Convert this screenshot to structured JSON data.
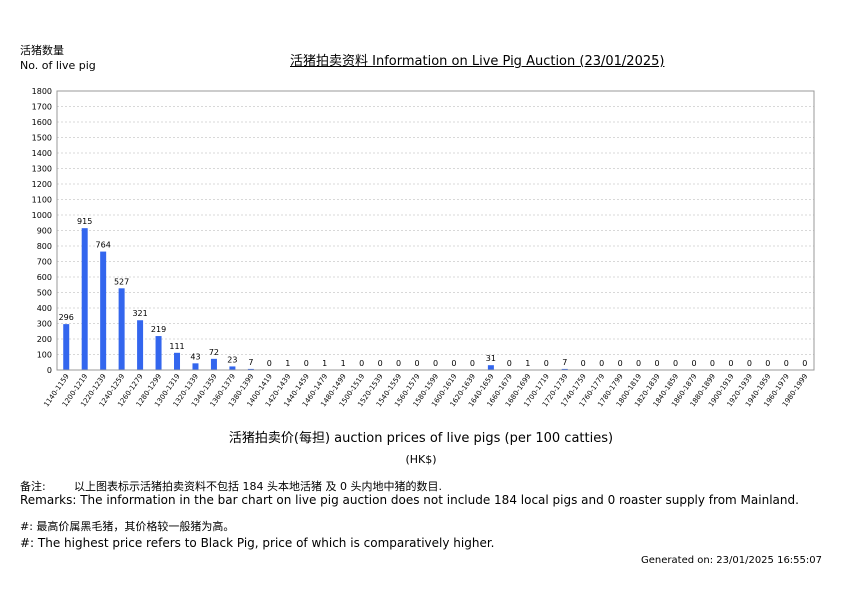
{
  "header": {
    "ylabel_cn": "活猪数量",
    "ylabel_en": "No. of live pig",
    "title": "活猪拍卖资料 Information on Live Pig Auction (23/01/2025)"
  },
  "footer": {
    "xlabel": "活猪拍卖价(每担) auction prices of live pigs (per 100 catties)",
    "unit": "(HK$)",
    "remark_cn_label": "备注:",
    "remark_cn": "以上图表标示活猪拍卖资料不包括 184 头本地活猪 及 0 头内地中猪的数目.",
    "remark_en": "Remarks: The information in the bar chart on live pig auction does not include 184 local pigs and 0 roaster supply from Mainland.",
    "note_cn": "#: 最高价属黑毛猪，其价格较一般猪为高。",
    "note_en": "#: The highest price refers to Black Pig, price of which is comparatively higher.",
    "generated": "Generated on: 23/01/2025 16:55:07"
  },
  "chart_data": {
    "type": "bar",
    "title": "活猪拍卖资料 Information on Live Pig Auction (23/01/2025)",
    "xlabel": "活猪拍卖价(每担) auction prices of live pigs (per 100 catties)",
    "ylabel": "活猪数量 No. of live pig",
    "ylim": [
      0,
      1800
    ],
    "yticks": [
      0,
      100,
      200,
      300,
      400,
      500,
      600,
      700,
      800,
      900,
      1000,
      1100,
      1200,
      1300,
      1400,
      1500,
      1600,
      1700,
      1800
    ],
    "grid": true,
    "bar_color": "#3366ee",
    "categories": [
      "1140-1159",
      "1200-1219",
      "1220-1239",
      "1240-1259",
      "1260-1279",
      "1280-1299",
      "1300-1319",
      "1320-1339",
      "1340-1359",
      "1360-1379",
      "1380-1399",
      "1400-1419",
      "1420-1439",
      "1440-1459",
      "1460-1479",
      "1480-1499",
      "1500-1519",
      "1520-1539",
      "1540-1559",
      "1560-1579",
      "1580-1599",
      "1600-1619",
      "1620-1639",
      "1640-1659",
      "1660-1679",
      "1680-1699",
      "1700-1719",
      "1720-1739",
      "1740-1759",
      "1760-1779",
      "1780-1799",
      "1800-1819",
      "1820-1839",
      "1840-1859",
      "1860-1879",
      "1880-1899",
      "1900-1919",
      "1920-1939",
      "1940-1959",
      "1960-1979",
      "1980-1999"
    ],
    "values": [
      296,
      915,
      764,
      527,
      321,
      219,
      111,
      43,
      72,
      23,
      7,
      0,
      1,
      0,
      1,
      1,
      0,
      0,
      0,
      0,
      0,
      0,
      0,
      31,
      0,
      1,
      0,
      7,
      0,
      0,
      0,
      0,
      0,
      0,
      0,
      0,
      0,
      0,
      0,
      0,
      0
    ]
  }
}
